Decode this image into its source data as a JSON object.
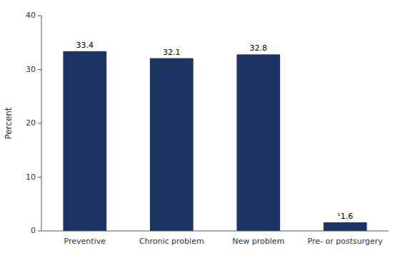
{
  "chart_data": {
    "type": "bar",
    "ylabel": "Percent",
    "categories": [
      "Preventive",
      "Chronic problem",
      "New problem",
      "Pre- or postsurgery"
    ],
    "values": [
      33.4,
      32.1,
      32.8,
      1.6
    ],
    "value_labels": [
      "33.4",
      "32.1",
      "32.8",
      "¹1.6"
    ],
    "data_labels": true,
    "color": "#1c3461",
    "ylim": [
      0,
      40
    ],
    "yticks": [
      0,
      10,
      20,
      30,
      40
    ],
    "grid": false
  }
}
